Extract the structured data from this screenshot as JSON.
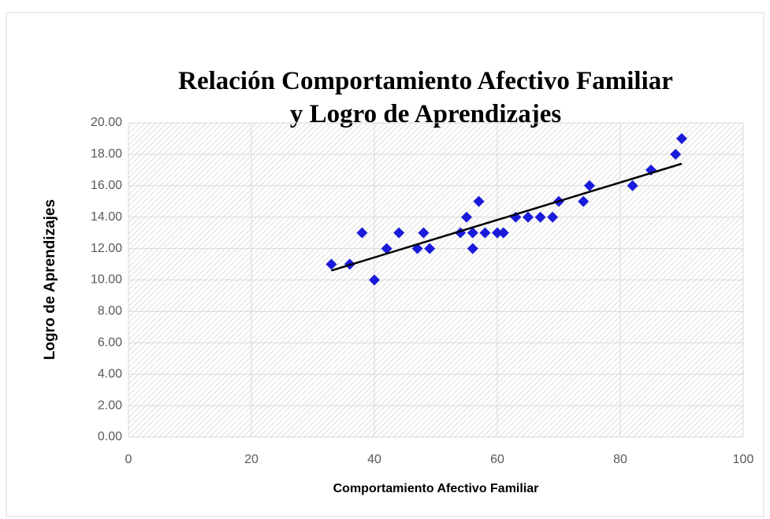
{
  "chart_data": {
    "type": "scatter",
    "title": "Relación Comportamiento Afectivo Familiar y Logro de Aprendizajes",
    "x_label": "Comportamiento Afectivo Familiar",
    "y_label": "Logro de Aprendizajes",
    "series": [
      {
        "name": "Logro de Aprendizajes",
        "color": "#1a1adb",
        "x": [
          33,
          36,
          38,
          40,
          42,
          44,
          47,
          48,
          49,
          54,
          55,
          56,
          56,
          57,
          58,
          60,
          61,
          63,
          65,
          67,
          69,
          70,
          74,
          75,
          82,
          85,
          89,
          90
        ],
        "values": [
          11,
          11,
          13,
          10,
          12,
          13,
          12,
          13,
          12,
          13,
          14,
          13,
          12,
          15,
          13,
          13,
          13,
          14,
          14,
          14,
          14,
          15,
          15,
          16,
          16,
          17,
          18,
          19
        ]
      }
    ],
    "trendline": {
      "color": "#000000",
      "x": [
        33,
        90
      ],
      "values": [
        10.6,
        17.4
      ]
    },
    "xlim": [
      0,
      100
    ],
    "xticks": [
      0,
      20,
      40,
      60,
      80,
      100
    ],
    "ylim": [
      0,
      20
    ],
    "yticks": [
      {
        "value": 0,
        "label": "0.00"
      },
      {
        "value": 2,
        "label": "2.00"
      },
      {
        "value": 4,
        "label": "4.00"
      },
      {
        "value": 6,
        "label": "6.00"
      },
      {
        "value": 8,
        "label": "8.00"
      },
      {
        "value": 10,
        "label": "10.00"
      },
      {
        "value": 12,
        "label": "12.00"
      },
      {
        "value": 14,
        "label": "14.00"
      },
      {
        "value": 16,
        "label": "16.00"
      },
      {
        "value": 18,
        "label": "18.00"
      },
      {
        "value": 20,
        "label": "20.00"
      }
    ],
    "grid": true
  }
}
